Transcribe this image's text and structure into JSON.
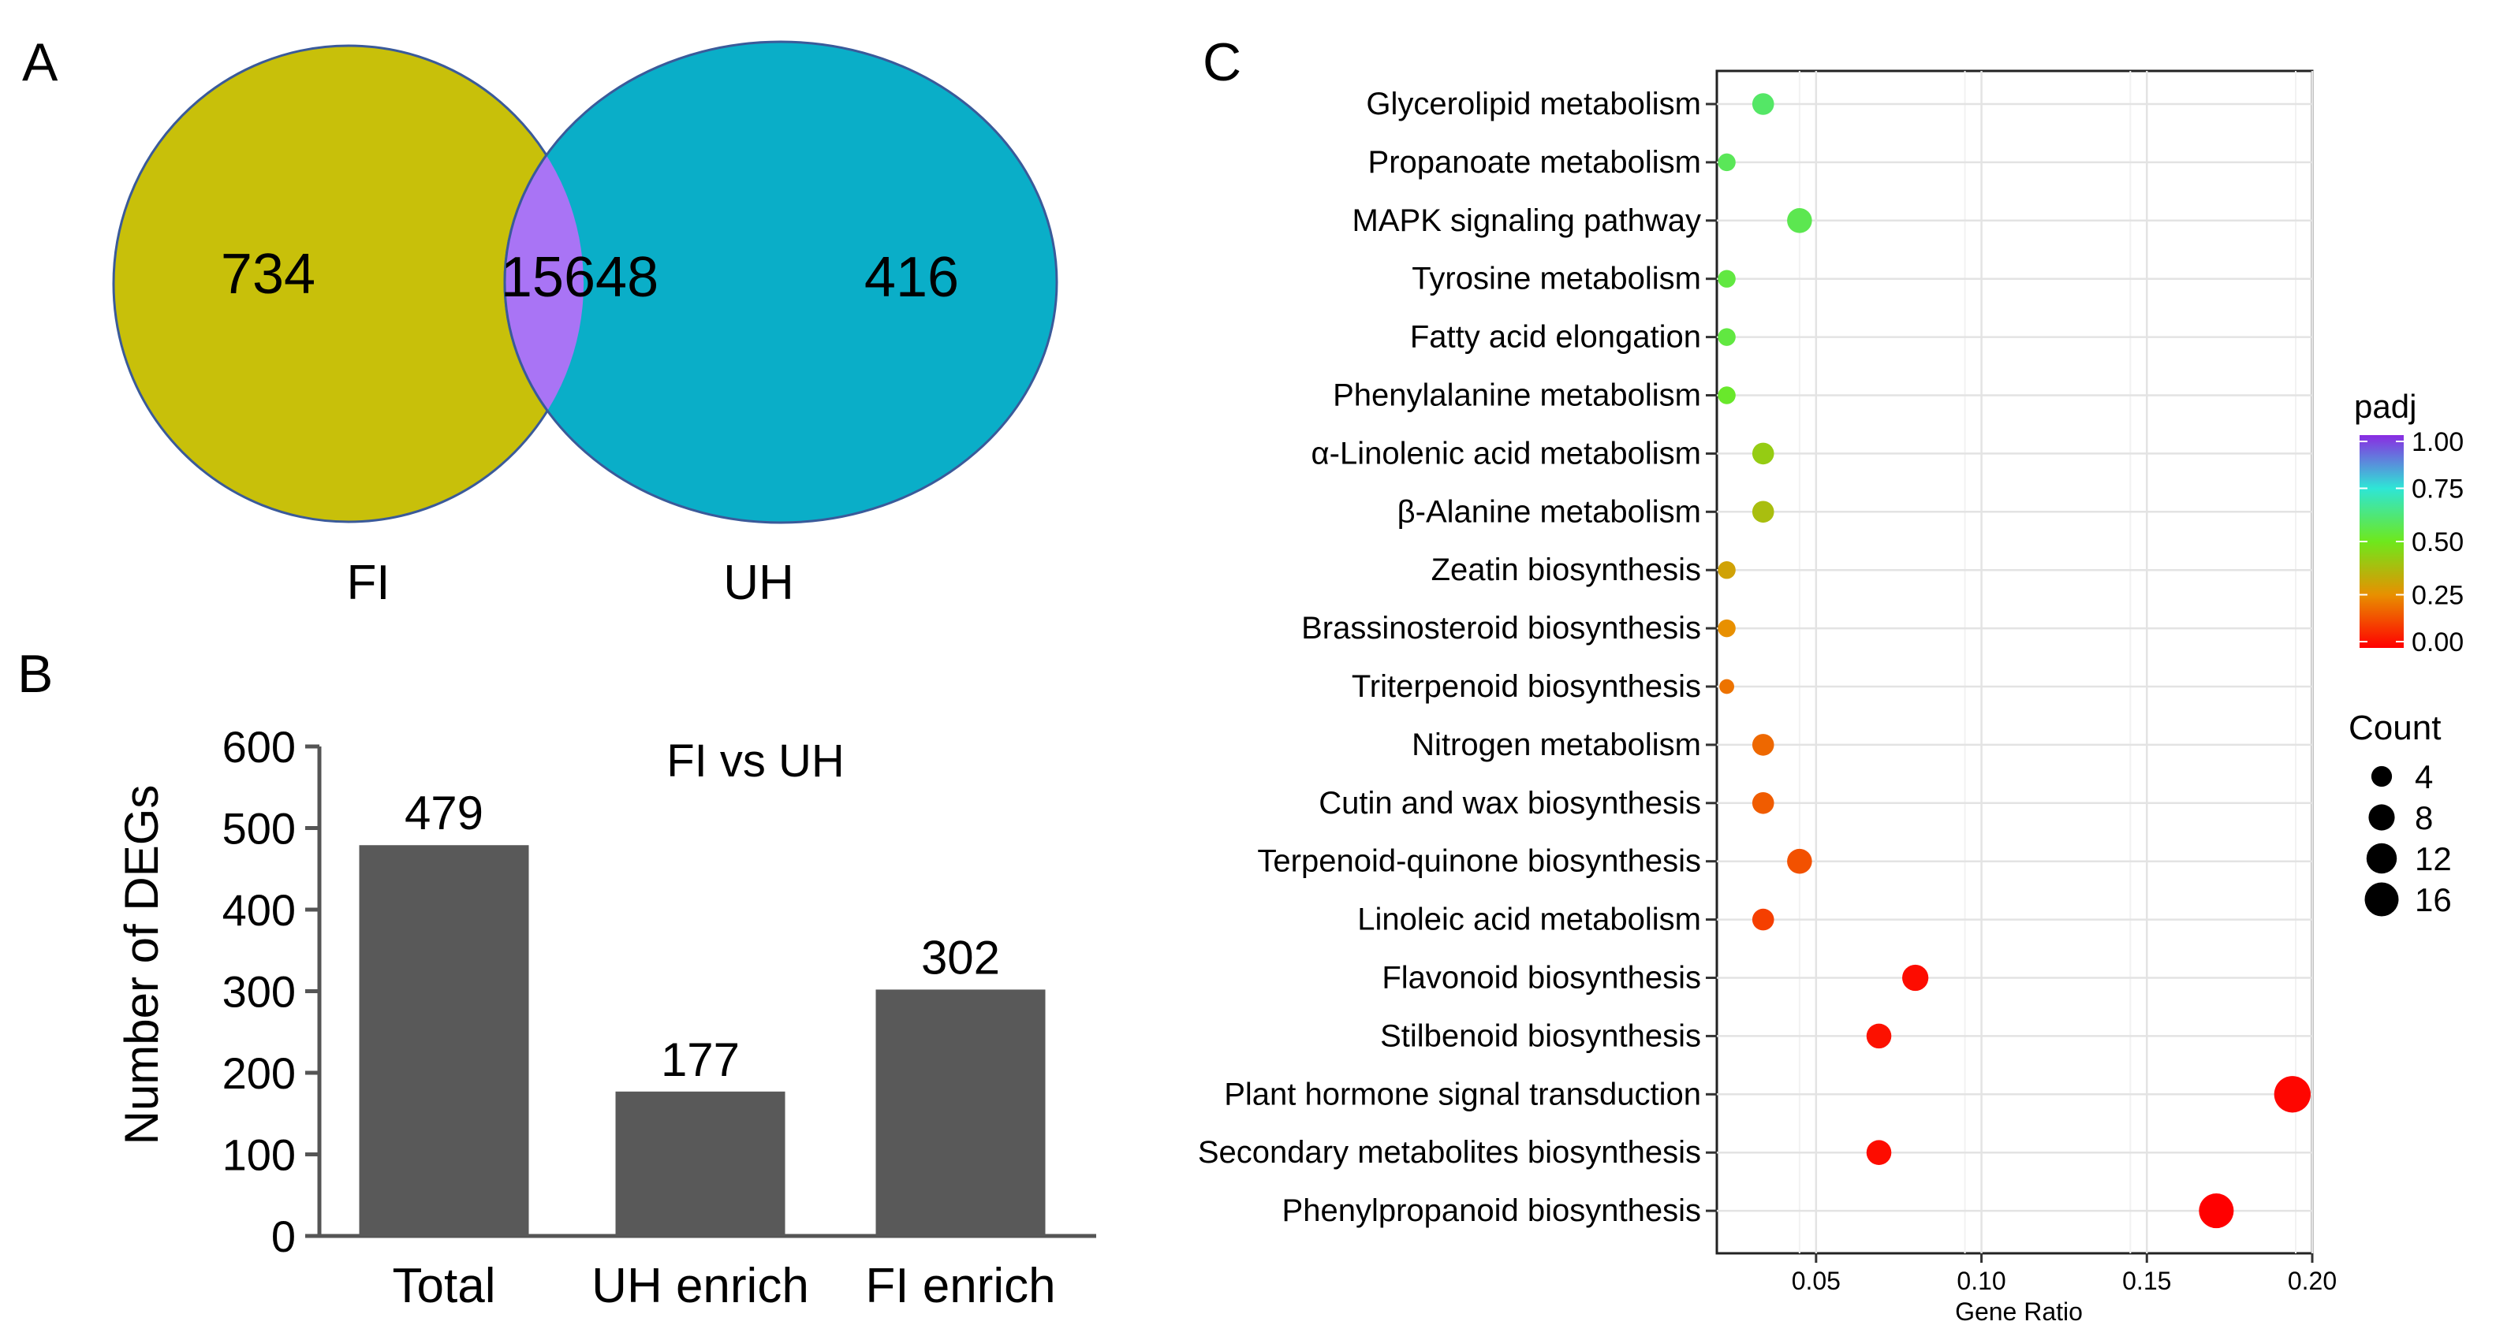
{
  "panels": {
    "a": {
      "label": "A"
    },
    "b": {
      "label": "B"
    },
    "c": {
      "label": "C"
    }
  },
  "venn": {
    "left_only": "734",
    "overlap": "15648",
    "right_only": "416",
    "left_set": "FI",
    "right_set": "UH",
    "colors": {
      "left": "#c8c00a",
      "right": "#0aaec8",
      "overlap": "#a974f5",
      "outline": "#3a5a9a"
    }
  },
  "chart_data": [
    {
      "type": "bar",
      "title": "FI vs UH",
      "categories": [
        "Total",
        "UH enrich",
        "FI enrich"
      ],
      "values": [
        479,
        177,
        302
      ],
      "value_labels": [
        "479",
        "177",
        "302"
      ],
      "ylabel": "Number of DEGs",
      "xlabel": "",
      "ylim": [
        0,
        600
      ],
      "yticks": [
        0,
        100,
        200,
        300,
        400,
        500,
        600
      ],
      "ytick_labels": [
        "0",
        "100",
        "200",
        "300",
        "400",
        "500",
        "600"
      ],
      "bar_color": "#595959"
    },
    {
      "type": "scatter",
      "title": "",
      "xlabel": "Gene Ratio",
      "xlim": [
        0.02,
        0.2
      ],
      "xticks": [
        0.05,
        0.1,
        0.15,
        0.2
      ],
      "xtick_labels": [
        "0.05",
        "0.10",
        "0.15",
        "0.20"
      ],
      "pathways": [
        {
          "name": "Glycerolipid metabolism",
          "gene_ratio": 0.034,
          "count": 4,
          "padj": 0.6
        },
        {
          "name": "Propanoate metabolism",
          "gene_ratio": 0.023,
          "count": 2,
          "padj": 0.58
        },
        {
          "name": "MAPK signaling pathway",
          "gene_ratio": 0.045,
          "count": 6,
          "padj": 0.57
        },
        {
          "name": "Tyrosine metabolism",
          "gene_ratio": 0.023,
          "count": 2,
          "padj": 0.55
        },
        {
          "name": "Fatty acid elongation",
          "gene_ratio": 0.023,
          "count": 2,
          "padj": 0.55
        },
        {
          "name": "Phenylalanine metabolism",
          "gene_ratio": 0.023,
          "count": 2,
          "padj": 0.52
        },
        {
          "name": "α-Linolenic acid metabolism",
          "gene_ratio": 0.034,
          "count": 4,
          "padj": 0.42
        },
        {
          "name": "β-Alanine metabolism",
          "gene_ratio": 0.034,
          "count": 4,
          "padj": 0.38
        },
        {
          "name": "Zeatin biosynthesis",
          "gene_ratio": 0.023,
          "count": 2,
          "padj": 0.3
        },
        {
          "name": "Brassinosteroid biosynthesis",
          "gene_ratio": 0.023,
          "count": 2,
          "padj": 0.25
        },
        {
          "name": "Triterpenoid biosynthesis",
          "gene_ratio": 0.023,
          "count": 1,
          "padj": 0.2
        },
        {
          "name": "Nitrogen metabolism",
          "gene_ratio": 0.034,
          "count": 4,
          "padj": 0.18
        },
        {
          "name": "Cutin and wax biosynthesis",
          "gene_ratio": 0.034,
          "count": 4,
          "padj": 0.16
        },
        {
          "name": "Terpenoid-quinone biosynthesis",
          "gene_ratio": 0.045,
          "count": 6,
          "padj": 0.14
        },
        {
          "name": "Linoleic acid metabolism",
          "gene_ratio": 0.034,
          "count": 4,
          "padj": 0.11
        },
        {
          "name": "Flavonoid biosynthesis",
          "gene_ratio": 0.08,
          "count": 7,
          "padj": 0.02
        },
        {
          "name": "Stilbenoid biosynthesis",
          "gene_ratio": 0.069,
          "count": 6,
          "padj": 0.03
        },
        {
          "name": "Plant hormone signal transduction",
          "gene_ratio": 0.194,
          "count": 17,
          "padj": 0.01
        },
        {
          "name": "Secondary metabolites biosynthesis",
          "gene_ratio": 0.069,
          "count": 6,
          "padj": 0.02
        },
        {
          "name": "Phenylpropanoid biosynthesis",
          "gene_ratio": 0.171,
          "count": 15,
          "padj": 0.0
        }
      ],
      "color_legend": {
        "title": "padj",
        "ticks": [
          0.0,
          0.25,
          0.5,
          0.75,
          1.0
        ],
        "tick_labels": [
          "0.00",
          "0.25",
          "0.50",
          "0.75",
          "1.00"
        ],
        "colors": [
          "#ff0000",
          "#e89000",
          "#6ee81c",
          "#2ee6d6",
          "#8a2be2"
        ]
      },
      "size_legend": {
        "title": "Count",
        "values": [
          4,
          8,
          12,
          16
        ],
        "labels": [
          "4",
          "8",
          "12",
          "16"
        ]
      }
    }
  ]
}
